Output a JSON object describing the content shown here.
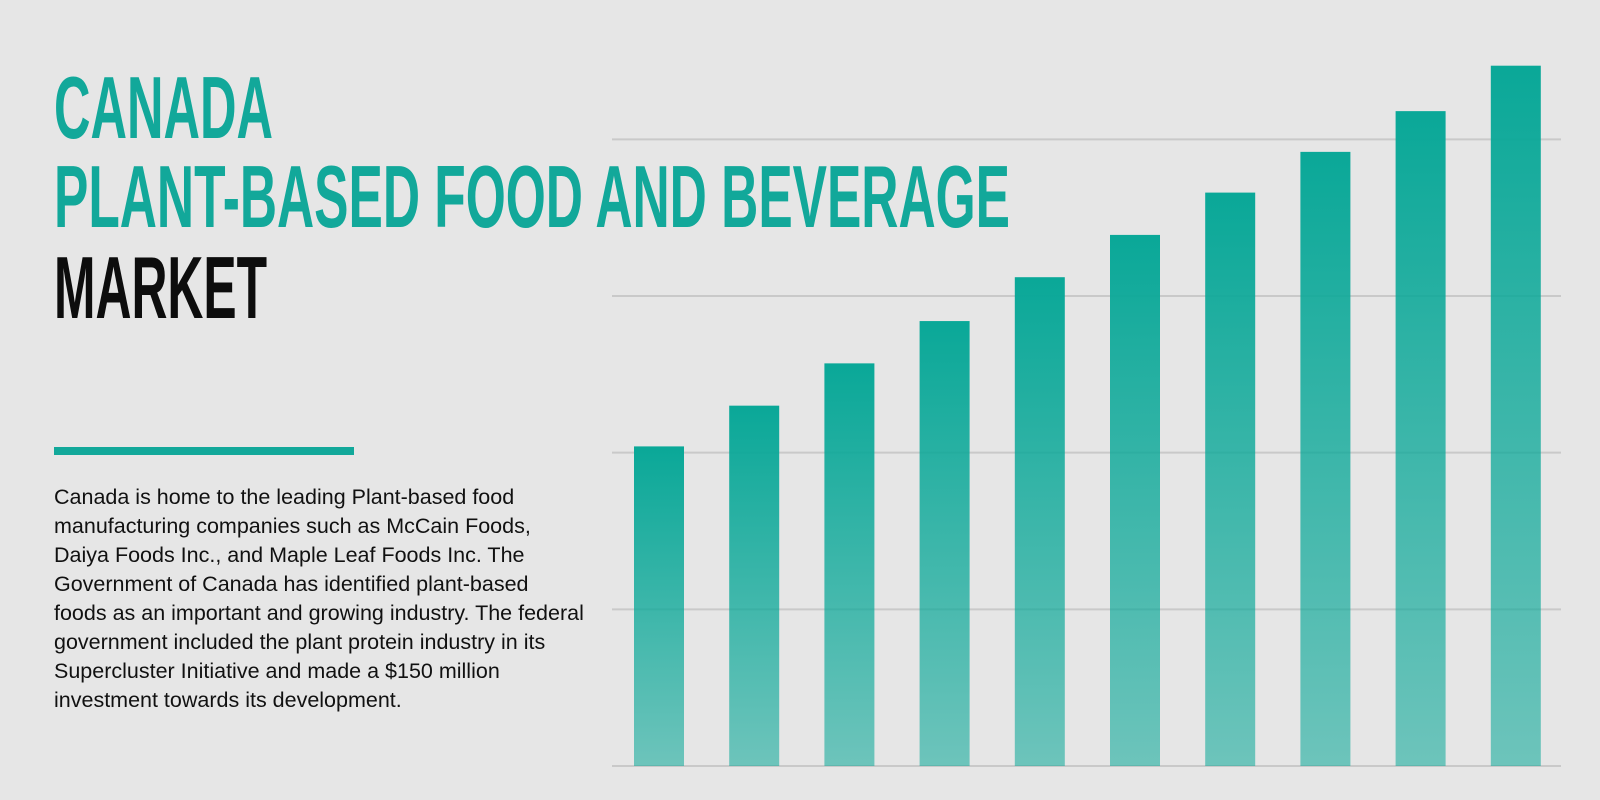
{
  "chart_data": {
    "type": "bar",
    "title_lines": [
      "CANADA",
      "PLANT-BASED FOOD AND BEVERAGE",
      "MARKET"
    ],
    "description": "Canada is home to the leading Plant-based food manufacturing companies such as McCain Foods, Daiya Foods Inc., and Maple Leaf Foods Inc. The Government of Canada has identified plant-based foods as an important and growing industry. The federal government included the plant protein industry in its Supercluster Initiative and made a $150 million investment towards its development.",
    "categories": [
      null,
      null,
      null,
      null,
      null,
      null,
      null,
      null,
      null,
      null
    ],
    "values": [
      2.04,
      2.3,
      2.57,
      2.84,
      3.12,
      3.39,
      3.66,
      3.92,
      4.18,
      4.47
    ],
    "color": "#0aa898",
    "ylim": [
      0,
      4.5
    ],
    "yticks": [
      0,
      1,
      2,
      3,
      4
    ],
    "grid": true
  }
}
